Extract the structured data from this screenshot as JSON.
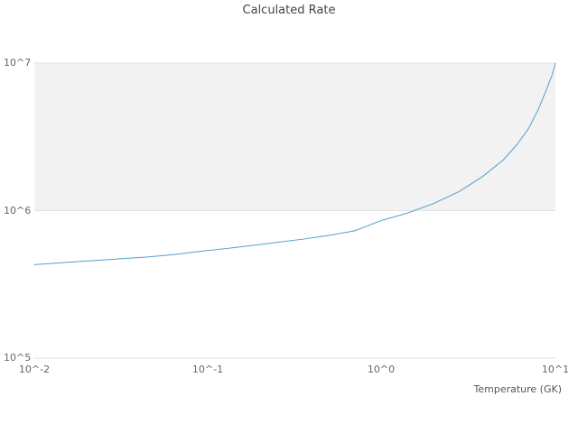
{
  "title": "Calculated Rate",
  "x_axis": {
    "label": "Temperature (GK)",
    "tick_labels": [
      "10^-2",
      "10^-1",
      "10^0",
      "10^1"
    ]
  },
  "y_axis": {
    "tick_labels": [
      "10^7",
      "10^6",
      "10^5"
    ]
  },
  "colors": {
    "line": "#539ecd",
    "band": "#f2f2f2",
    "grid": "#e2e2e2",
    "title_text": "#444444",
    "tick_text": "#666666"
  },
  "chart_data": {
    "type": "line",
    "title": "Calculated Rate",
    "xlabel": "Temperature (GK)",
    "ylabel": "",
    "x_scale": "log",
    "y_scale": "log",
    "xlim": [
      0.01,
      10
    ],
    "ylim": [
      100000.0,
      10000000.0
    ],
    "grid": "horizontal-decades",
    "legend": "none",
    "x": [
      0.01,
      0.015,
      0.02,
      0.03,
      0.045,
      0.065,
      0.09,
      0.13,
      0.18,
      0.25,
      0.35,
      0.5,
      0.7,
      1.0,
      1.4,
      2.0,
      2.8,
      3.8,
      5.0,
      6.0,
      7.0,
      8.0,
      9.0,
      9.6,
      10.0
    ],
    "y": [
      430000.0,
      445000.0,
      455000.0,
      470000.0,
      485000.0,
      505000.0,
      530000.0,
      555000.0,
      580000.0,
      610000.0,
      640000.0,
      680000.0,
      730000.0,
      860000.0,
      960000.0,
      1120000.0,
      1350000.0,
      1700000.0,
      2200000.0,
      2800000.0,
      3600000.0,
      4900000.0,
      6900000.0,
      8400000.0,
      10000000.0
    ]
  }
}
